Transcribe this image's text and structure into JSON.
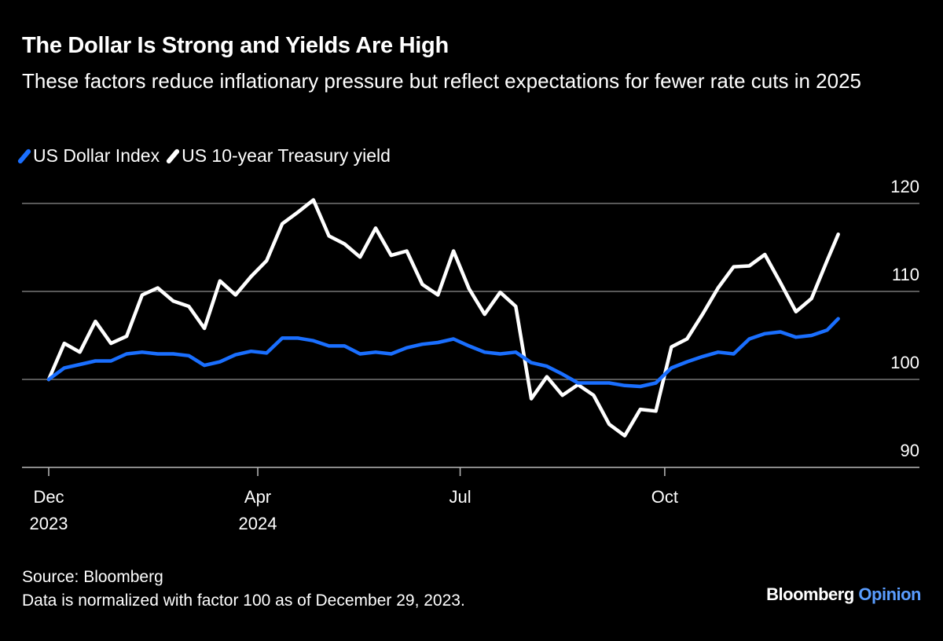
{
  "header": {
    "title": "The Dollar Is Strong and Yields Are High",
    "subtitle": "These factors reduce inflationary pressure but reflect expectations for fewer rate cuts in 2025"
  },
  "footer": {
    "source": "Source: Bloomberg",
    "note": "Data is normalized with factor 100 as of December 29, 2023.",
    "logo_main": "Bloomberg",
    "logo_sub": "Opinion"
  },
  "chart_data": {
    "type": "line",
    "title": "The Dollar Is Strong and Yields Are High",
    "xlabel": "",
    "ylabel": "",
    "ylim": [
      90,
      120
    ],
    "y_ticks": [
      90,
      100,
      110,
      120
    ],
    "y_axis_side": "right",
    "x_ticks": [
      {
        "date": "2023-12-29",
        "label": "Dec",
        "sublabel": "2023"
      },
      {
        "date": "2024-04-01",
        "label": "Apr",
        "sublabel": "2024"
      },
      {
        "date": "2024-07-01",
        "label": "Jul",
        "sublabel": ""
      },
      {
        "date": "2024-10-01",
        "label": "Oct",
        "sublabel": ""
      }
    ],
    "grid": true,
    "legend_placement": "top-left",
    "x": [
      "2023-12-29",
      "2024-01-05",
      "2024-01-12",
      "2024-01-19",
      "2024-01-26",
      "2024-02-02",
      "2024-02-09",
      "2024-02-16",
      "2024-02-23",
      "2024-03-01",
      "2024-03-08",
      "2024-03-15",
      "2024-03-22",
      "2024-03-29",
      "2024-04-05",
      "2024-04-12",
      "2024-04-19",
      "2024-04-26",
      "2024-05-03",
      "2024-05-10",
      "2024-05-17",
      "2024-05-24",
      "2024-05-31",
      "2024-06-07",
      "2024-06-14",
      "2024-06-21",
      "2024-06-28",
      "2024-07-05",
      "2024-07-12",
      "2024-07-19",
      "2024-07-26",
      "2024-08-02",
      "2024-08-09",
      "2024-08-16",
      "2024-08-23",
      "2024-08-30",
      "2024-09-06",
      "2024-09-13",
      "2024-09-20",
      "2024-09-27",
      "2024-10-04",
      "2024-10-11",
      "2024-10-18",
      "2024-10-25",
      "2024-11-01",
      "2024-11-08",
      "2024-11-15",
      "2024-11-22",
      "2024-11-29",
      "2024-12-06",
      "2024-12-13",
      "2024-12-18"
    ],
    "series": [
      {
        "name": "US Dollar Index",
        "color": "#1a6fff",
        "values": [
          100,
          101.3,
          101.7,
          102.1,
          102.1,
          102.9,
          103.1,
          102.9,
          102.9,
          102.7,
          101.6,
          102.0,
          102.8,
          103.2,
          103.0,
          104.7,
          104.7,
          104.4,
          103.8,
          103.8,
          102.9,
          103.1,
          102.9,
          103.6,
          104.0,
          104.2,
          104.6,
          103.8,
          103.1,
          102.9,
          103.1,
          101.9,
          101.5,
          100.6,
          99.6,
          99.6,
          99.6,
          99.3,
          99.2,
          99.6,
          101.3,
          102.0,
          102.6,
          103.1,
          102.9,
          104.6,
          105.2,
          105.4,
          104.8,
          105.0,
          105.6,
          106.9
        ]
      },
      {
        "name": "US 10-year Treasury yield",
        "color": "#ffffff",
        "values": [
          100,
          104.1,
          103.1,
          106.6,
          104.1,
          104.9,
          109.6,
          110.4,
          108.9,
          108.3,
          105.8,
          111.2,
          109.6,
          111.7,
          113.5,
          117.7,
          119.0,
          120.4,
          116.3,
          115.4,
          113.9,
          117.2,
          114.1,
          114.6,
          110.8,
          109.6,
          114.6,
          110.3,
          107.4,
          109.9,
          108.3,
          97.8,
          100.3,
          98.2,
          99.4,
          98.2,
          94.9,
          93.6,
          96.6,
          96.4,
          103.7,
          104.6,
          107.4,
          110.4,
          112.8,
          112.9,
          114.2,
          111.0,
          107.7,
          109.2,
          113.5,
          116.5
        ]
      }
    ]
  }
}
